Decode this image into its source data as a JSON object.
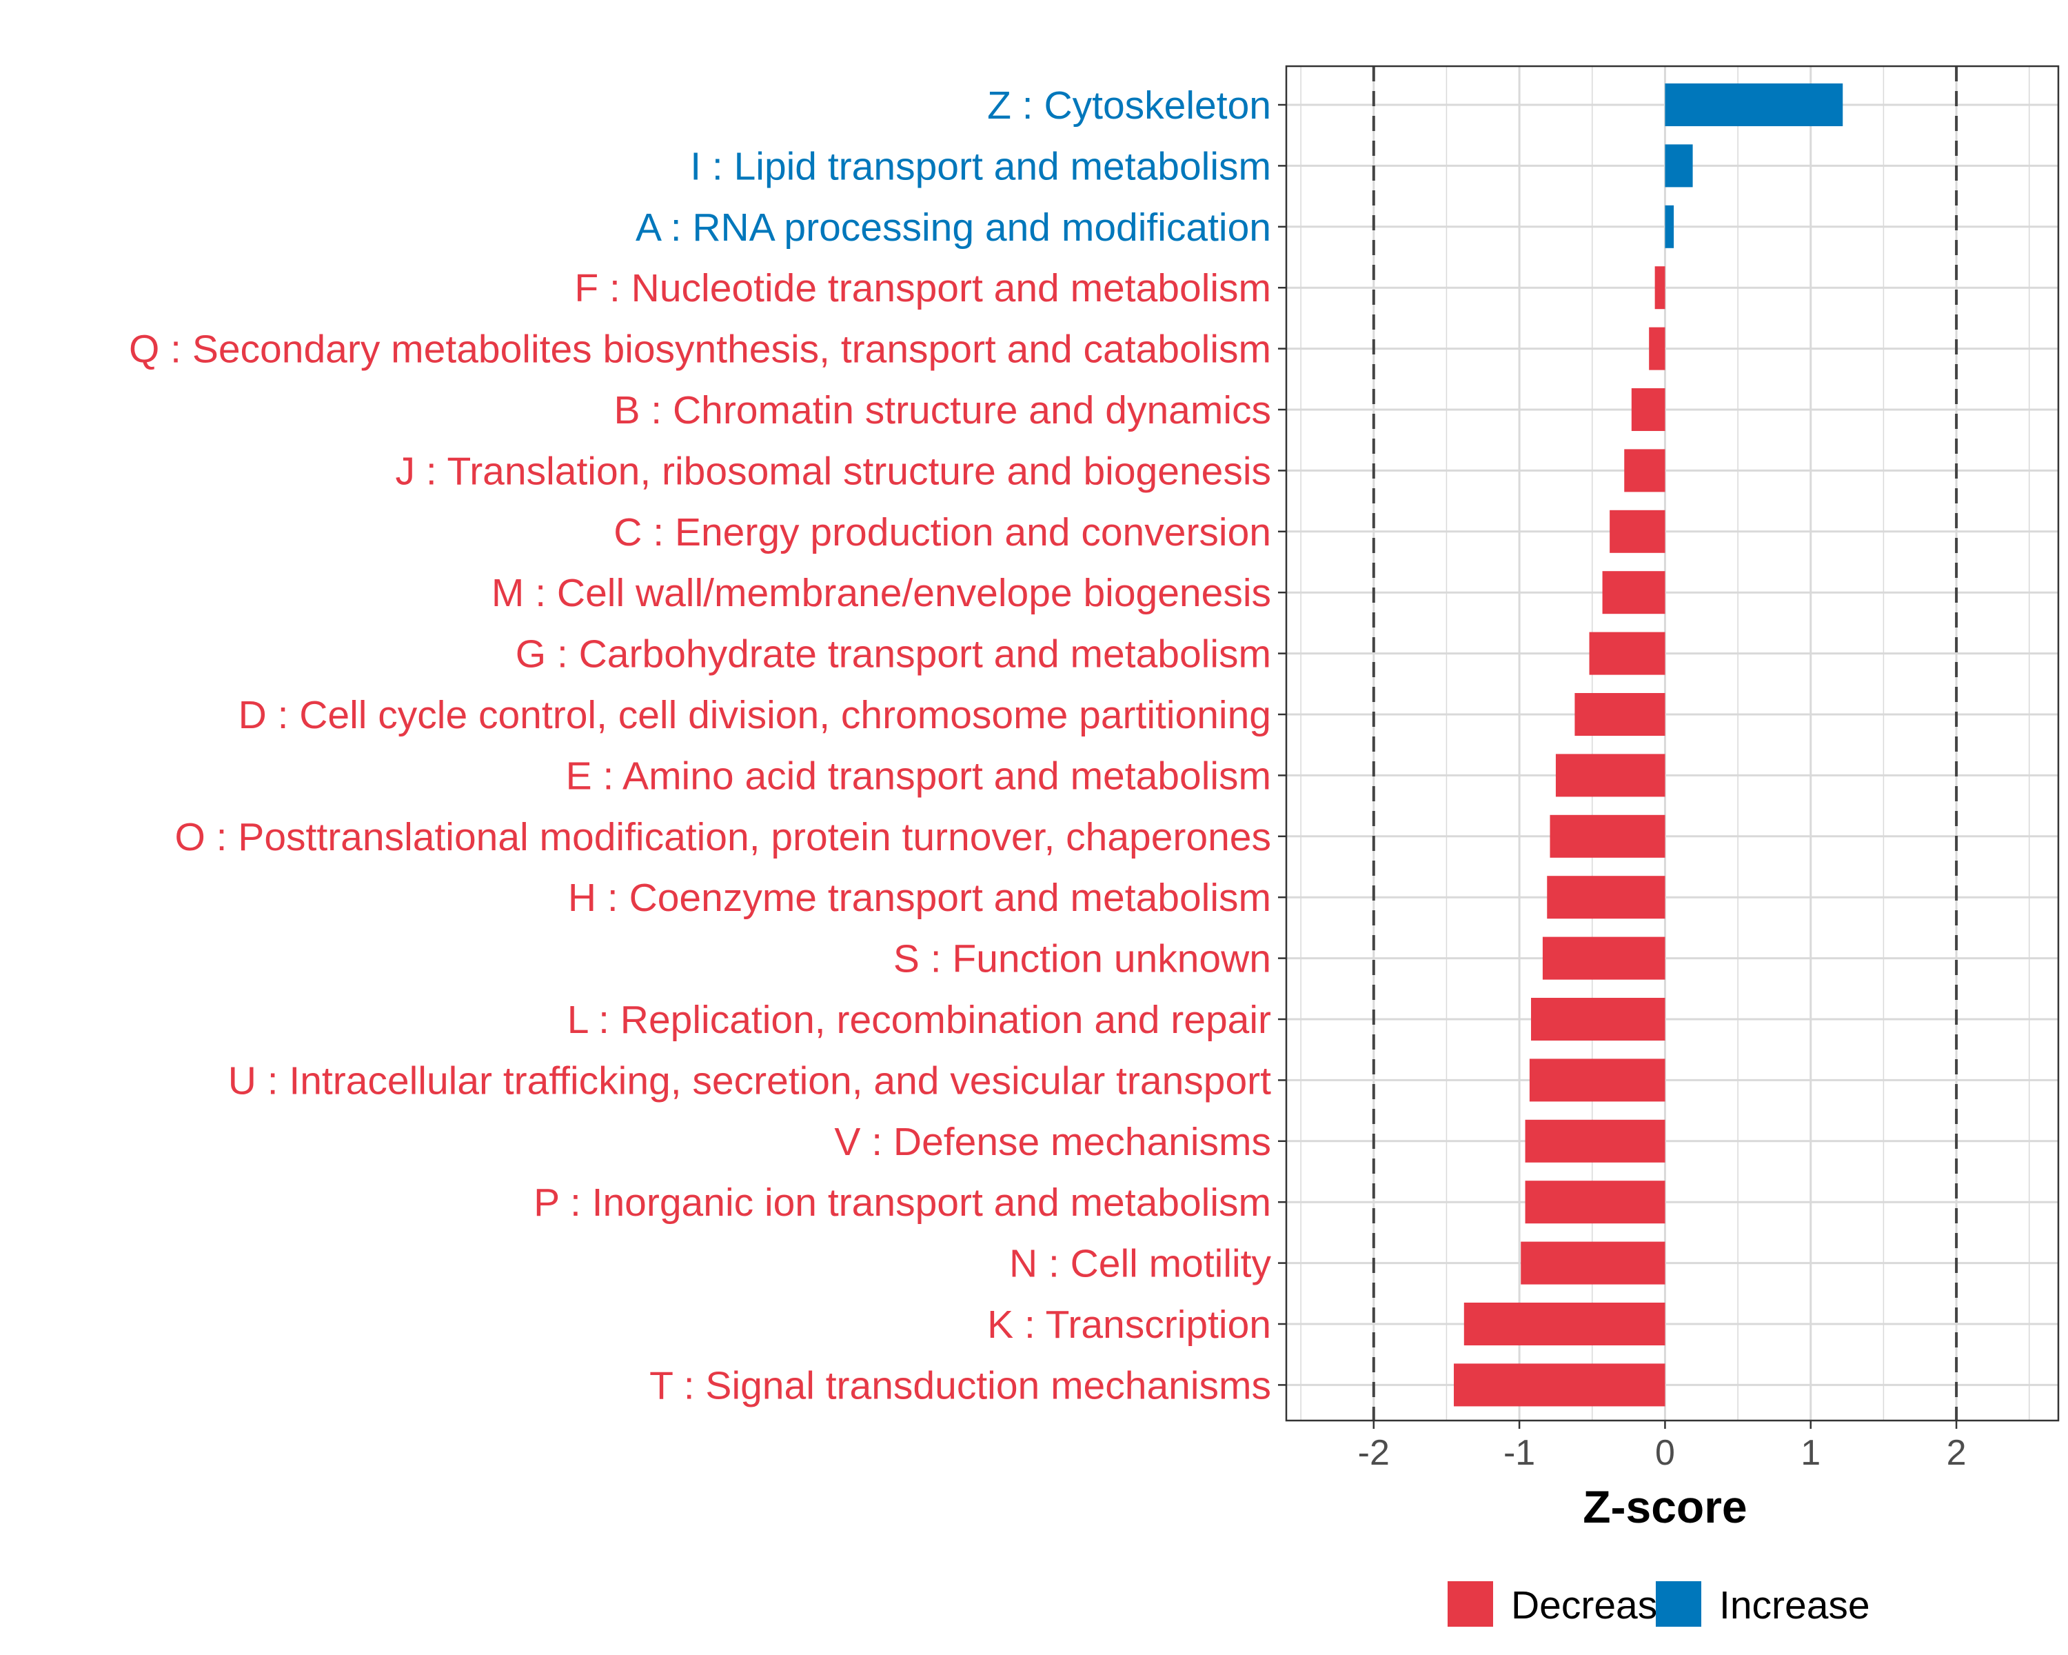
{
  "chart_data": {
    "type": "bar",
    "orientation": "horizontal",
    "xlabel": "Z-score",
    "xlim": [
      -2.6,
      2.7
    ],
    "x_ticks": [
      -2,
      -1,
      0,
      1,
      2
    ],
    "x_tick_labels": [
      "-2",
      "-1",
      "0",
      "1",
      "2"
    ],
    "reference_lines": [
      -2,
      2
    ],
    "categories": [
      "Z : Cytoskeleton",
      "I : Lipid transport and metabolism",
      "A : RNA processing and modification",
      "F : Nucleotide transport and metabolism",
      "Q : Secondary metabolites biosynthesis, transport and catabolism",
      "B : Chromatin structure and dynamics",
      "J : Translation, ribosomal structure and biogenesis",
      "C : Energy production and conversion",
      "M : Cell wall/membrane/envelope biogenesis",
      "G : Carbohydrate transport and metabolism",
      "D : Cell cycle control, cell division, chromosome partitioning",
      "E : Amino acid transport and metabolism",
      "O : Posttranslational modification, protein turnover, chaperones",
      "H : Coenzyme transport and metabolism",
      "S : Function unknown",
      "L : Replication, recombination and repair",
      "U : Intracellular trafficking, secretion, and vesicular transport",
      "V : Defense mechanisms",
      "P : Inorganic ion transport and metabolism",
      "N : Cell motility",
      "K : Transcription",
      "T : Signal transduction mechanisms"
    ],
    "values": [
      1.22,
      0.19,
      0.06,
      -0.07,
      -0.11,
      -0.23,
      -0.28,
      -0.38,
      -0.43,
      -0.52,
      -0.62,
      -0.75,
      -0.79,
      -0.81,
      -0.84,
      -0.92,
      -0.93,
      -0.96,
      -0.96,
      -0.99,
      -1.38,
      -1.45
    ],
    "groups": [
      "Increase",
      "Increase",
      "Increase",
      "Decrease",
      "Decrease",
      "Decrease",
      "Decrease",
      "Decrease",
      "Decrease",
      "Decrease",
      "Decrease",
      "Decrease",
      "Decrease",
      "Decrease",
      "Decrease",
      "Decrease",
      "Decrease",
      "Decrease",
      "Decrease",
      "Decrease",
      "Decrease",
      "Decrease"
    ],
    "legend": [
      {
        "label": "Decrease",
        "color": "#e63946"
      },
      {
        "label": "Increase",
        "color": "#0077bb"
      }
    ],
    "legend_position": "bottom"
  }
}
